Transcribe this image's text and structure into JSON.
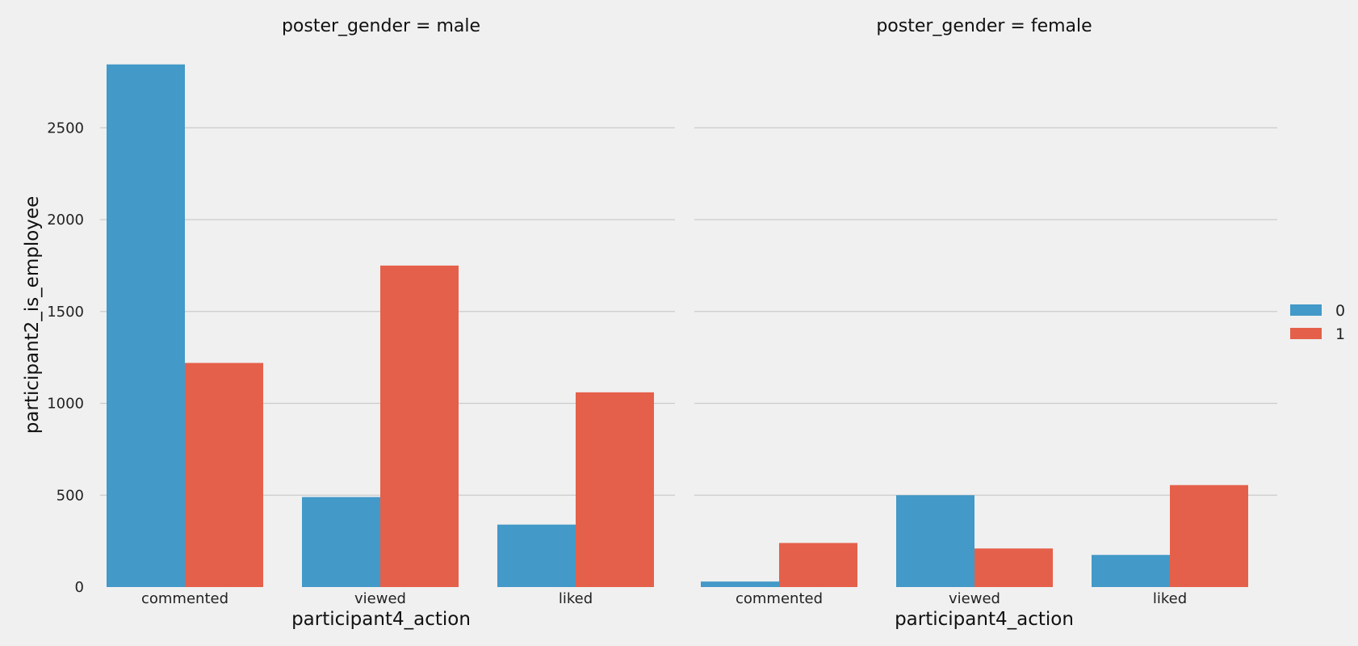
{
  "chart_data": {
    "type": "bar",
    "ylabel": "participant2_is_employee",
    "ylim": [
      0,
      2850
    ],
    "yticks": [
      0,
      500,
      1000,
      1500,
      2000,
      2500
    ],
    "grid": true,
    "legend_position": "right",
    "categories": [
      "commented",
      "viewed",
      "liked"
    ],
    "panels": [
      {
        "title": "poster_gender = male",
        "xlabel": "participant4_action",
        "series": [
          {
            "name": "0",
            "color": "#4399c8",
            "values": [
              2845,
              490,
              340
            ]
          },
          {
            "name": "1",
            "color": "#e5604a",
            "values": [
              1220,
              1750,
              1060
            ]
          }
        ]
      },
      {
        "title": "poster_gender = female",
        "xlabel": "participant4_action",
        "series": [
          {
            "name": "0",
            "color": "#4399c8",
            "values": [
              30,
              500,
              175
            ]
          },
          {
            "name": "1",
            "color": "#e5604a",
            "values": [
              240,
              210,
              555
            ]
          }
        ]
      }
    ],
    "legend": [
      {
        "label": "0",
        "color": "#4399c8"
      },
      {
        "label": "1",
        "color": "#e5604a"
      }
    ]
  }
}
